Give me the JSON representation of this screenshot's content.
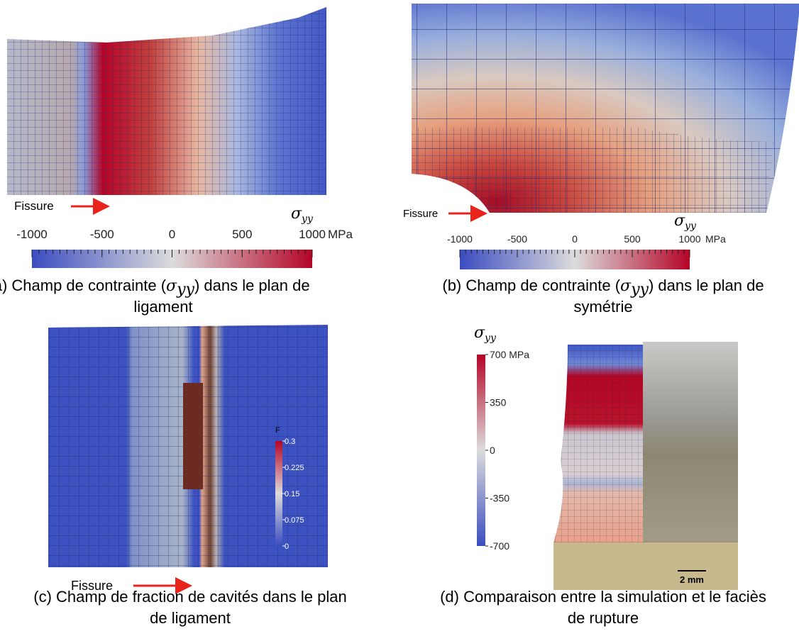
{
  "panels": [
    {
      "caption": [
        "(a) Champ de contrainte (",
        ") dans le plan de ",
        "ligament"
      ],
      "symbol": "σ",
      "subscript": "yy",
      "annotation": "Fissure",
      "colorbar": {
        "orientation": "horizontal",
        "label": "σ",
        "label_sub": "yy",
        "unit": "MPa",
        "lim": [
          -1000,
          1000
        ],
        "ticks": [
          -1000,
          -500,
          0,
          500,
          1000
        ]
      }
    },
    {
      "caption": [
        "(b) Champ de contrainte (",
        ") dans le plan de",
        "symétrie"
      ],
      "symbol": "σ",
      "subscript": "yy",
      "annotation": "Fissure",
      "colorbar": {
        "orientation": "horizontal",
        "label": "σ",
        "label_sub": "yy",
        "unit": "MPa",
        "lim": [
          -1000,
          1000
        ],
        "ticks": [
          -1000,
          -500,
          0,
          500,
          1000
        ]
      }
    },
    {
      "caption": [
        "(c) Champ de fraction de cavités dans le plan",
        "de ligament"
      ],
      "annotation": "Fissure",
      "colorbar": {
        "orientation": "vertical",
        "label": "F",
        "lim": [
          0,
          0.3
        ],
        "ticks": [
          0.3,
          0.225,
          0.15,
          0.075,
          0
        ]
      }
    },
    {
      "caption": [
        "(d) Comparaison entre la simulation et le faciès",
        "de rupture"
      ],
      "scale_bar": "2 mm",
      "colorbar": {
        "orientation": "vertical",
        "label": "σ",
        "label_sub": "yy",
        "lim": [
          -700,
          700
        ],
        "ticks": [
          {
            "value": 700,
            "label": "700 MPa"
          },
          350,
          0,
          -350,
          -700
        ]
      }
    }
  ]
}
